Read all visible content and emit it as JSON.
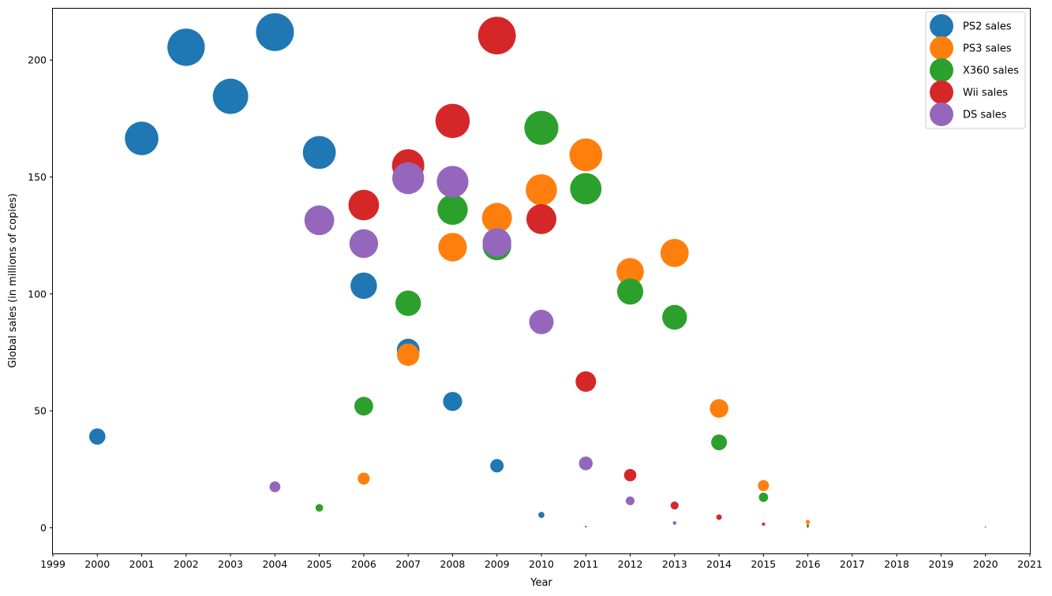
{
  "chart_data": {
    "type": "scatter",
    "title": "",
    "xlabel": "Year",
    "ylabel": "Global sales (in millions of copies)",
    "xlim": [
      1999,
      2021
    ],
    "ylim": [
      -11,
      222
    ],
    "xticks": [
      1999,
      2000,
      2001,
      2002,
      2003,
      2004,
      2005,
      2006,
      2007,
      2008,
      2009,
      2010,
      2011,
      2012,
      2013,
      2014,
      2015,
      2016,
      2017,
      2018,
      2019,
      2020,
      2021
    ],
    "yticks": [
      0,
      50,
      100,
      150,
      200
    ],
    "grid": false,
    "legend_position": "top-right",
    "marker_size_encodes": "y value",
    "series": [
      {
        "name": "PS2 sales",
        "color": "#1f77b4",
        "points": [
          [
            2000,
            39
          ],
          [
            2001,
            166.5
          ],
          [
            2002,
            205.5
          ],
          [
            2003,
            184.5
          ],
          [
            2004,
            212
          ],
          [
            2005,
            160.5
          ],
          [
            2006,
            103.5
          ],
          [
            2007,
            76
          ],
          [
            2008,
            54
          ],
          [
            2009,
            26.5
          ],
          [
            2010,
            5.5
          ],
          [
            2011,
            0.5
          ]
        ]
      },
      {
        "name": "PS3 sales",
        "color": "#ff7f0e",
        "points": [
          [
            2006,
            21
          ],
          [
            2007,
            74
          ],
          [
            2008,
            120
          ],
          [
            2009,
            132.5
          ],
          [
            2010,
            144.5
          ],
          [
            2011,
            159.5
          ],
          [
            2012,
            109.5
          ],
          [
            2013,
            117.5
          ],
          [
            2014,
            51
          ],
          [
            2015,
            18
          ],
          [
            2016,
            2.5
          ]
        ]
      },
      {
        "name": "X360 sales",
        "color": "#2ca02c",
        "points": [
          [
            2005,
            8.5
          ],
          [
            2006,
            52
          ],
          [
            2007,
            96
          ],
          [
            2008,
            136
          ],
          [
            2009,
            120.5
          ],
          [
            2010,
            171
          ],
          [
            2011,
            145
          ],
          [
            2012,
            101
          ],
          [
            2013,
            90
          ],
          [
            2014,
            36.5
          ],
          [
            2015,
            13
          ],
          [
            2016,
            1
          ]
        ]
      },
      {
        "name": "Wii sales",
        "color": "#d62728",
        "points": [
          [
            2006,
            138
          ],
          [
            2007,
            155
          ],
          [
            2008,
            174
          ],
          [
            2009,
            210.5
          ],
          [
            2010,
            132
          ],
          [
            2011,
            62.5
          ],
          [
            2012,
            22.5
          ],
          [
            2013,
            9.5
          ],
          [
            2014,
            4.5
          ],
          [
            2015,
            1.5
          ],
          [
            2016,
            0.2
          ]
        ]
      },
      {
        "name": "DS sales",
        "color": "#9467bd",
        "points": [
          [
            2004,
            17.5
          ],
          [
            2005,
            131.5
          ],
          [
            2006,
            121.5
          ],
          [
            2007,
            149.5
          ],
          [
            2008,
            148
          ],
          [
            2009,
            122
          ],
          [
            2010,
            88
          ],
          [
            2011,
            27.5
          ],
          [
            2012,
            11.5
          ],
          [
            2013,
            2
          ],
          [
            2020,
            0.3
          ]
        ]
      }
    ]
  }
}
